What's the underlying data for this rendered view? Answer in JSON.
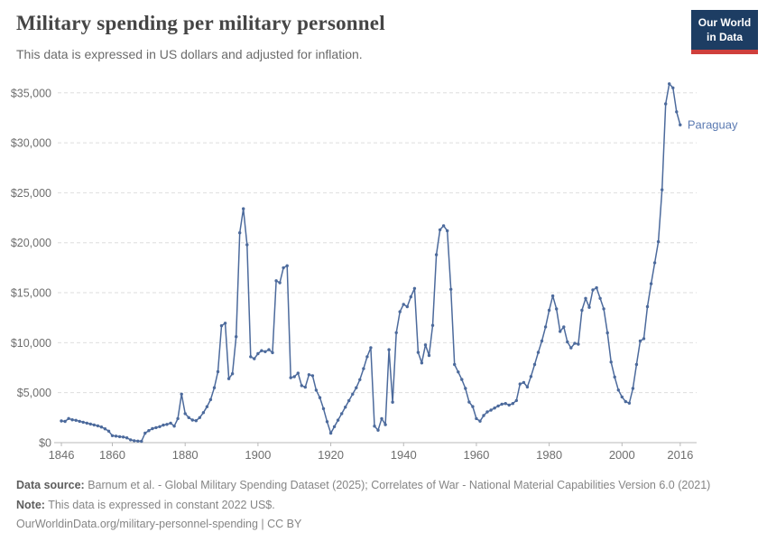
{
  "header": {
    "title": "Military spending per military personnel",
    "subtitle": "This data is expressed in US dollars and adjusted for inflation.",
    "logo": {
      "line1": "Our World",
      "line2": "in Data"
    }
  },
  "colors": {
    "line": "#4c6a9c",
    "entity_label": "#5b7ab2",
    "grid": "#dedede",
    "axis": "#b9b9b9",
    "tick_text": "#6e6e6e",
    "logo_bg": "#1d3d63",
    "logo_red": "#cf3f3c",
    "title_text": "#454545",
    "subtitle_text": "#6b6b6b"
  },
  "chart_data": {
    "type": "line",
    "title": "Military spending per military personnel",
    "subtitle": "This data is expressed in US dollars and adjusted for inflation.",
    "entity": "Paraguay",
    "unit": "constant 2022 US$",
    "xlabel": "",
    "ylabel": "",
    "xlim": [
      1845,
      2020.5
    ],
    "ylim": [
      0,
      35000
    ],
    "grid": "horizontal-dashed",
    "legend_position": "line-end-label",
    "y_ticks": [
      {
        "v": 0,
        "label": "$0"
      },
      {
        "v": 5000,
        "label": "$5,000"
      },
      {
        "v": 10000,
        "label": "$10,000"
      },
      {
        "v": 15000,
        "label": "$15,000"
      },
      {
        "v": 20000,
        "label": "$20,000"
      },
      {
        "v": 25000,
        "label": "$25,000"
      },
      {
        "v": 30000,
        "label": "$30,000"
      },
      {
        "v": 35000,
        "label": "$35,000"
      }
    ],
    "x_ticks": [
      {
        "v": 1846,
        "label": "1846"
      },
      {
        "v": 1860,
        "label": "1860"
      },
      {
        "v": 1880,
        "label": "1880"
      },
      {
        "v": 1900,
        "label": "1900"
      },
      {
        "v": 1920,
        "label": "1920"
      },
      {
        "v": 1940,
        "label": "1940"
      },
      {
        "v": 1960,
        "label": "1960"
      },
      {
        "v": 1980,
        "label": "1980"
      },
      {
        "v": 2000,
        "label": "2000"
      },
      {
        "v": 2016,
        "label": "2016"
      }
    ],
    "points": [
      [
        1846,
        2170
      ],
      [
        1847,
        2120
      ],
      [
        1848,
        2410
      ],
      [
        1849,
        2290
      ],
      [
        1850,
        2230
      ],
      [
        1851,
        2130
      ],
      [
        1852,
        2040
      ],
      [
        1853,
        1950
      ],
      [
        1854,
        1860
      ],
      [
        1855,
        1770
      ],
      [
        1856,
        1680
      ],
      [
        1857,
        1560
      ],
      [
        1858,
        1380
      ],
      [
        1859,
        1150
      ],
      [
        1860,
        700
      ],
      [
        1861,
        650
      ],
      [
        1862,
        600
      ],
      [
        1863,
        560
      ],
      [
        1864,
        480
      ],
      [
        1865,
        280
      ],
      [
        1866,
        190
      ],
      [
        1867,
        150
      ],
      [
        1868,
        140
      ],
      [
        1869,
        950
      ],
      [
        1870,
        1200
      ],
      [
        1871,
        1400
      ],
      [
        1872,
        1500
      ],
      [
        1873,
        1600
      ],
      [
        1874,
        1750
      ],
      [
        1875,
        1830
      ],
      [
        1876,
        1950
      ],
      [
        1877,
        1650
      ],
      [
        1878,
        2400
      ],
      [
        1879,
        4850
      ],
      [
        1880,
        2900
      ],
      [
        1881,
        2500
      ],
      [
        1882,
        2260
      ],
      [
        1883,
        2200
      ],
      [
        1884,
        2500
      ],
      [
        1885,
        3000
      ],
      [
        1886,
        3600
      ],
      [
        1887,
        4300
      ],
      [
        1888,
        5500
      ],
      [
        1889,
        7100
      ],
      [
        1890,
        11700
      ],
      [
        1891,
        11950
      ],
      [
        1892,
        6400
      ],
      [
        1893,
        6900
      ],
      [
        1894,
        10600
      ],
      [
        1895,
        21000
      ],
      [
        1896,
        23400
      ],
      [
        1897,
        19800
      ],
      [
        1898,
        8600
      ],
      [
        1899,
        8400
      ],
      [
        1900,
        8900
      ],
      [
        1901,
        9200
      ],
      [
        1902,
        9100
      ],
      [
        1903,
        9300
      ],
      [
        1904,
        9000
      ],
      [
        1905,
        16200
      ],
      [
        1906,
        16000
      ],
      [
        1907,
        17500
      ],
      [
        1908,
        17700
      ],
      [
        1909,
        6500
      ],
      [
        1910,
        6600
      ],
      [
        1911,
        6950
      ],
      [
        1912,
        5700
      ],
      [
        1913,
        5550
      ],
      [
        1914,
        6800
      ],
      [
        1915,
        6700
      ],
      [
        1916,
        5250
      ],
      [
        1917,
        4500
      ],
      [
        1918,
        3400
      ],
      [
        1919,
        2100
      ],
      [
        1920,
        950
      ],
      [
        1921,
        1600
      ],
      [
        1922,
        2250
      ],
      [
        1923,
        2900
      ],
      [
        1924,
        3550
      ],
      [
        1925,
        4200
      ],
      [
        1926,
        4850
      ],
      [
        1927,
        5500
      ],
      [
        1928,
        6300
      ],
      [
        1929,
        7400
      ],
      [
        1930,
        8600
      ],
      [
        1931,
        9500
      ],
      [
        1932,
        1650
      ],
      [
        1933,
        1250
      ],
      [
        1934,
        2400
      ],
      [
        1935,
        1800
      ],
      [
        1936,
        9300
      ],
      [
        1937,
        4050
      ],
      [
        1938,
        11000
      ],
      [
        1939,
        13100
      ],
      [
        1940,
        13840
      ],
      [
        1941,
        13600
      ],
      [
        1942,
        14590
      ],
      [
        1943,
        15430
      ],
      [
        1944,
        9030
      ],
      [
        1945,
        7970
      ],
      [
        1946,
        9780
      ],
      [
        1947,
        8720
      ],
      [
        1948,
        11730
      ],
      [
        1949,
        18800
      ],
      [
        1950,
        21300
      ],
      [
        1951,
        21700
      ],
      [
        1952,
        21200
      ],
      [
        1953,
        15340
      ],
      [
        1954,
        7820
      ],
      [
        1955,
        7070
      ],
      [
        1956,
        6320
      ],
      [
        1957,
        5420
      ],
      [
        1958,
        4060
      ],
      [
        1959,
        3610
      ],
      [
        1960,
        2400
      ],
      [
        1961,
        2150
      ],
      [
        1962,
        2710
      ],
      [
        1963,
        3070
      ],
      [
        1964,
        3250
      ],
      [
        1965,
        3460
      ],
      [
        1966,
        3670
      ],
      [
        1967,
        3850
      ],
      [
        1968,
        3910
      ],
      [
        1969,
        3760
      ],
      [
        1970,
        3910
      ],
      [
        1971,
        4210
      ],
      [
        1972,
        5870
      ],
      [
        1973,
        6020
      ],
      [
        1974,
        5570
      ],
      [
        1975,
        6620
      ],
      [
        1976,
        7820
      ],
      [
        1977,
        9030
      ],
      [
        1978,
        10170
      ],
      [
        1979,
        11580
      ],
      [
        1980,
        13240
      ],
      [
        1981,
        14680
      ],
      [
        1982,
        13380
      ],
      [
        1983,
        11130
      ],
      [
        1984,
        11580
      ],
      [
        1985,
        10080
      ],
      [
        1986,
        9480
      ],
      [
        1987,
        9930
      ],
      [
        1988,
        9850
      ],
      [
        1989,
        13240
      ],
      [
        1990,
        14440
      ],
      [
        1991,
        13540
      ],
      [
        1992,
        15280
      ],
      [
        1993,
        15490
      ],
      [
        1994,
        14440
      ],
      [
        1995,
        13390
      ],
      [
        1996,
        10980
      ],
      [
        1997,
        8060
      ],
      [
        1998,
        6560
      ],
      [
        1999,
        5260
      ],
      [
        2000,
        4570
      ],
      [
        2001,
        4100
      ],
      [
        2002,
        3950
      ],
      [
        2003,
        5420
      ],
      [
        2004,
        7820
      ],
      [
        2005,
        10170
      ],
      [
        2006,
        10400
      ],
      [
        2007,
        13600
      ],
      [
        2008,
        15900
      ],
      [
        2009,
        18000
      ],
      [
        2010,
        20100
      ],
      [
        2011,
        25300
      ],
      [
        2012,
        33900
      ],
      [
        2013,
        35900
      ],
      [
        2014,
        35500
      ],
      [
        2015,
        33100
      ],
      [
        2016,
        31800
      ]
    ]
  },
  "footer": {
    "source_label": "Data source:",
    "source_text": " Barnum et al. - Global Military Spending Dataset (2025); Correlates of War - National Material Capabilities Version 6.0 (2021)",
    "note_label": "Note:",
    "note_text": " This data is expressed in constant 2022 US$.",
    "url_line": "OurWorldinData.org/military-personnel-spending | CC BY"
  }
}
